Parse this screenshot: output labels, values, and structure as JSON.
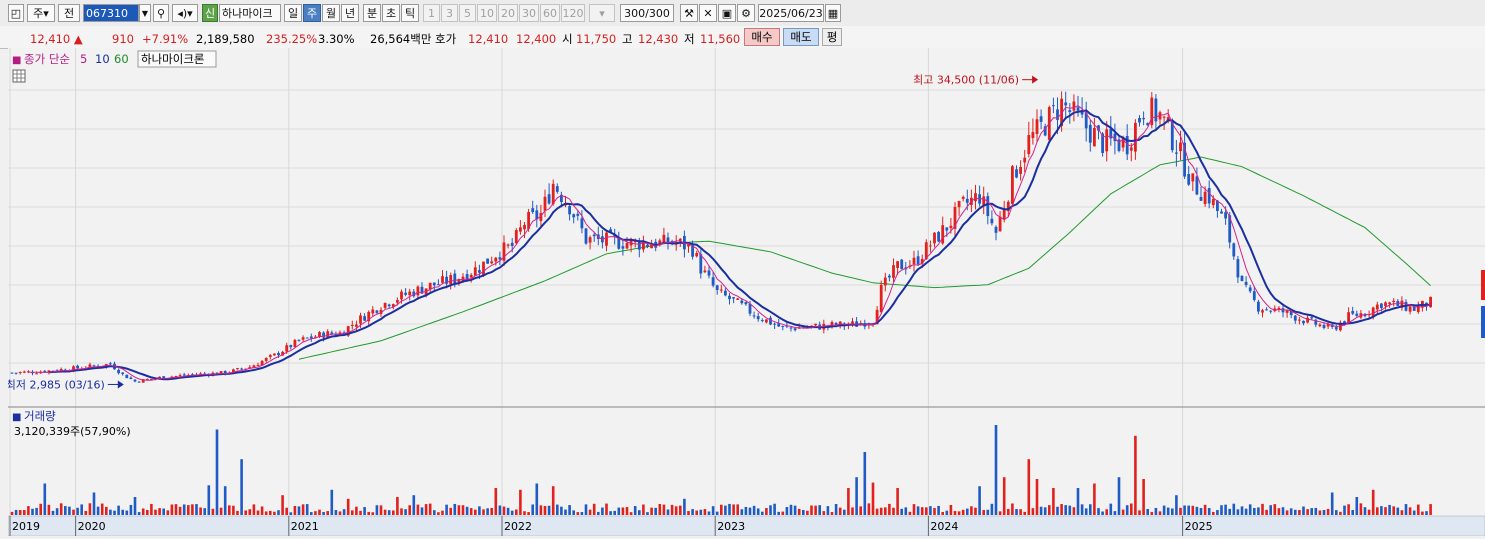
{
  "toolbar": {
    "period_mode": "주",
    "prev_label": "전",
    "stock_code": "067310",
    "stock_name": "하나마이크",
    "sin_label": "신",
    "periods": [
      "일",
      "주",
      "월",
      "년"
    ],
    "selected_period": "주",
    "minute_tick": [
      "분",
      "초",
      "틱"
    ],
    "intervals": [
      "1",
      "3",
      "5",
      "10",
      "20",
      "30",
      "60",
      "120"
    ],
    "count": "300/300",
    "date": "2025/06/23"
  },
  "quote": {
    "price": "12,410",
    "arrow": "▲",
    "change": "910",
    "change_pct": "+7.91%",
    "volume": "2,189,580",
    "volume_ratio": "235.25%",
    "turnover": "3.30%",
    "amount": "26,564백만",
    "hoga_label": "호가",
    "ask": "12,410",
    "bid": "12,400",
    "open_label": "시",
    "open": "11,750",
    "high_label": "고",
    "high": "12,430",
    "low_label": "저",
    "low": "11,560",
    "buy_label": "매수",
    "sell_label": "매도",
    "pyeong_label": "평"
  },
  "legend": {
    "ma_prefix": "종가 단순",
    "ma5": "5",
    "ma10": "10",
    "ma60": "60",
    "name": "하나마이크론"
  },
  "chart_data": {
    "type": "candlestick",
    "price_range": [
      2000,
      35500
    ],
    "colors": {
      "up": "#e0211d",
      "down": "#1f5bc4",
      "ma5": "#d4238e",
      "ma10": "#1a2fa0",
      "ma60": "#1f9a2c"
    },
    "x_labels": [
      "2019",
      "2020",
      "2021",
      "2022",
      "2023",
      "2024",
      "2025"
    ],
    "annotations": [
      {
        "text": "최고 34,500 (11/06)",
        "value": 34500,
        "color": "#c0141a"
      },
      {
        "text": "최저 2,985 (03/16)",
        "value": 2985,
        "color": "#1a2fa0"
      }
    ],
    "price_path": [
      [
        0,
        4200
      ],
      [
        6,
        4300
      ],
      [
        14,
        4600
      ],
      [
        20,
        4900
      ],
      [
        24,
        5100
      ],
      [
        27,
        4000
      ],
      [
        30,
        3300
      ],
      [
        36,
        3700
      ],
      [
        44,
        4000
      ],
      [
        52,
        4200
      ],
      [
        58,
        4800
      ],
      [
        64,
        6000
      ],
      [
        70,
        7500
      ],
      [
        76,
        8200
      ],
      [
        80,
        8300
      ],
      [
        84,
        9500
      ],
      [
        90,
        11200
      ],
      [
        96,
        12300
      ],
      [
        102,
        13200
      ],
      [
        108,
        13900
      ],
      [
        114,
        15100
      ],
      [
        118,
        16500
      ],
      [
        122,
        17300
      ],
      [
        125,
        19700
      ],
      [
        129,
        20600
      ],
      [
        132,
        23800
      ],
      [
        136,
        21500
      ],
      [
        140,
        18000
      ],
      [
        146,
        17800
      ],
      [
        152,
        17600
      ],
      [
        158,
        17600
      ],
      [
        162,
        17700
      ],
      [
        166,
        17000
      ],
      [
        168,
        15000
      ],
      [
        172,
        12500
      ],
      [
        176,
        11600
      ],
      [
        182,
        10000
      ],
      [
        188,
        8800
      ],
      [
        194,
        8900
      ],
      [
        200,
        9100
      ],
      [
        206,
        9200
      ],
      [
        210,
        9700
      ],
      [
        212,
        12800
      ],
      [
        216,
        15200
      ],
      [
        220,
        15600
      ],
      [
        224,
        17500
      ],
      [
        228,
        19300
      ],
      [
        232,
        21500
      ],
      [
        236,
        22500
      ],
      [
        240,
        18700
      ],
      [
        244,
        24400
      ],
      [
        248,
        28200
      ],
      [
        252,
        30000
      ],
      [
        256,
        32000
      ],
      [
        260,
        30400
      ],
      [
        266,
        28000
      ],
      [
        272,
        28000
      ],
      [
        276,
        31500
      ],
      [
        280,
        30800
      ],
      [
        284,
        27700
      ],
      [
        288,
        23700
      ],
      [
        292,
        22400
      ],
      [
        296,
        19500
      ],
      [
        300,
        13200
      ],
      [
        304,
        11000
      ],
      [
        310,
        10500
      ],
      [
        316,
        9500
      ],
      [
        322,
        8700
      ],
      [
        326,
        10000
      ],
      [
        330,
        10400
      ],
      [
        334,
        11400
      ],
      [
        338,
        11200
      ],
      [
        342,
        10800
      ],
      [
        346,
        11500
      ]
    ],
    "ma60_path": [
      [
        70,
        5600
      ],
      [
        90,
        7500
      ],
      [
        110,
        10500
      ],
      [
        130,
        13700
      ],
      [
        145,
        16500
      ],
      [
        160,
        17600
      ],
      [
        170,
        17800
      ],
      [
        185,
        16700
      ],
      [
        200,
        14500
      ],
      [
        210,
        13500
      ],
      [
        225,
        13000
      ],
      [
        238,
        13300
      ],
      [
        248,
        15000
      ],
      [
        258,
        18700
      ],
      [
        268,
        22700
      ],
      [
        280,
        25700
      ],
      [
        290,
        26500
      ],
      [
        300,
        25500
      ],
      [
        315,
        22500
      ],
      [
        330,
        19200
      ],
      [
        340,
        15500
      ],
      [
        346,
        13200
      ]
    ],
    "volume_label": "거래량",
    "volume_text": "3,120,339주(57,90%)",
    "volume_max": 4000000,
    "volume_spikes": [
      [
        8,
        0.35
      ],
      [
        20,
        0.25
      ],
      [
        30,
        0.2
      ],
      [
        48,
        0.33
      ],
      [
        50,
        0.95
      ],
      [
        52,
        0.32
      ],
      [
        56,
        0.62
      ],
      [
        66,
        0.22
      ],
      [
        78,
        0.28
      ],
      [
        82,
        0.18
      ],
      [
        94,
        0.2
      ],
      [
        98,
        0.22
      ],
      [
        118,
        0.3
      ],
      [
        124,
        0.28
      ],
      [
        128,
        0.35
      ],
      [
        132,
        0.32
      ],
      [
        164,
        0.18
      ],
      [
        204,
        0.3
      ],
      [
        206,
        0.42
      ],
      [
        208,
        0.7
      ],
      [
        210,
        0.36
      ],
      [
        216,
        0.3
      ],
      [
        236,
        0.32
      ],
      [
        240,
        1.0
      ],
      [
        242,
        0.42
      ],
      [
        248,
        0.62
      ],
      [
        250,
        0.4
      ],
      [
        254,
        0.3
      ],
      [
        260,
        0.3
      ],
      [
        264,
        0.35
      ],
      [
        270,
        0.42
      ],
      [
        274,
        0.88
      ],
      [
        276,
        0.4
      ],
      [
        284,
        0.22
      ],
      [
        322,
        0.25
      ],
      [
        328,
        0.2
      ],
      [
        332,
        0.28
      ]
    ]
  }
}
